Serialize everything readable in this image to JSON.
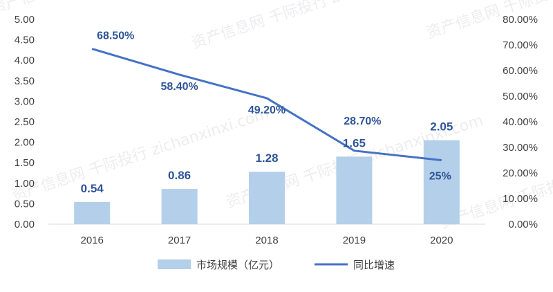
{
  "chart_data": {
    "type": "bar",
    "categories": [
      "2016",
      "2017",
      "2018",
      "2019",
      "2020"
    ],
    "series": [
      {
        "name": "市场规模（亿元）",
        "type": "bar",
        "axis": "left",
        "values": [
          0.54,
          0.86,
          1.28,
          1.65,
          2.05
        ],
        "labels": [
          "0.54",
          "0.86",
          "1.28",
          "1.65",
          "2.05"
        ],
        "color": "#b4cfe9"
      },
      {
        "name": "同比增速",
        "type": "line",
        "axis": "right",
        "values": [
          68.5,
          58.4,
          49.2,
          28.7,
          25.0
        ],
        "labels": [
          "68.50%",
          "58.40%",
          "49.20%",
          "28.70%",
          "25%"
        ],
        "color": "#4472c4"
      }
    ],
    "y_left": {
      "range": [
        0,
        5
      ],
      "ticks": [
        "0.00",
        "0.50",
        "1.00",
        "1.50",
        "2.00",
        "2.50",
        "3.00",
        "3.50",
        "4.00",
        "4.50",
        "5.00"
      ]
    },
    "y_right": {
      "range": [
        0,
        80
      ],
      "ticks": [
        "0.00%",
        "10.00%",
        "20.00%",
        "30.00%",
        "40.00%",
        "50.00%",
        "60.00%",
        "70.00%",
        "80.00%"
      ]
    },
    "grid": false,
    "legend_position": "bottom",
    "watermark": "资产信息网 千际投行 zichanxinxi.com"
  }
}
